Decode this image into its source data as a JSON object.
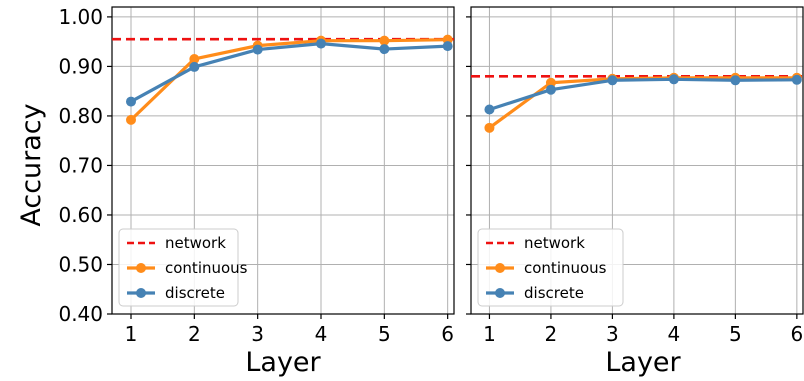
{
  "chart_data": [
    {
      "type": "line",
      "xlabel": "Layer",
      "ylabel": "Accuracy",
      "x": [
        1,
        2,
        3,
        4,
        5,
        6
      ],
      "xlim": [
        0.7,
        6.1
      ],
      "ylim": [
        0.4,
        1.02
      ],
      "x_ticks": [
        "1",
        "2",
        "3",
        "4",
        "5",
        "6"
      ],
      "y_ticks": [
        "0.40",
        "0.50",
        "0.60",
        "0.70",
        "0.80",
        "0.90",
        "1.00"
      ],
      "grid": true,
      "legend_position": "lower-left",
      "reference_lines": [
        {
          "name": "network",
          "y": 0.955,
          "color": "#ee1111",
          "style": "dashed"
        }
      ],
      "series": [
        {
          "name": "continuous",
          "color": "#ff8c1a",
          "values": [
            0.792,
            0.915,
            0.942,
            0.952,
            0.952,
            0.954
          ]
        },
        {
          "name": "discrete",
          "color": "#4682b4",
          "values": [
            0.829,
            0.899,
            0.934,
            0.946,
            0.935,
            0.941
          ]
        }
      ]
    },
    {
      "type": "line",
      "xlabel": "Layer",
      "ylabel": "",
      "x": [
        1,
        2,
        3,
        4,
        5,
        6
      ],
      "xlim": [
        0.7,
        6.1
      ],
      "ylim": [
        0.4,
        1.02
      ],
      "x_ticks": [
        "1",
        "2",
        "3",
        "4",
        "5",
        "6"
      ],
      "y_ticks": [],
      "grid": true,
      "legend_position": "lower-left",
      "reference_lines": [
        {
          "name": "network",
          "y": 0.88,
          "color": "#ee1111",
          "style": "dashed"
        }
      ],
      "series": [
        {
          "name": "continuous",
          "color": "#ff8c1a",
          "values": [
            0.776,
            0.867,
            0.875,
            0.877,
            0.877,
            0.877
          ]
        },
        {
          "name": "discrete",
          "color": "#4682b4",
          "values": [
            0.813,
            0.853,
            0.872,
            0.874,
            0.872,
            0.873
          ]
        }
      ]
    }
  ]
}
